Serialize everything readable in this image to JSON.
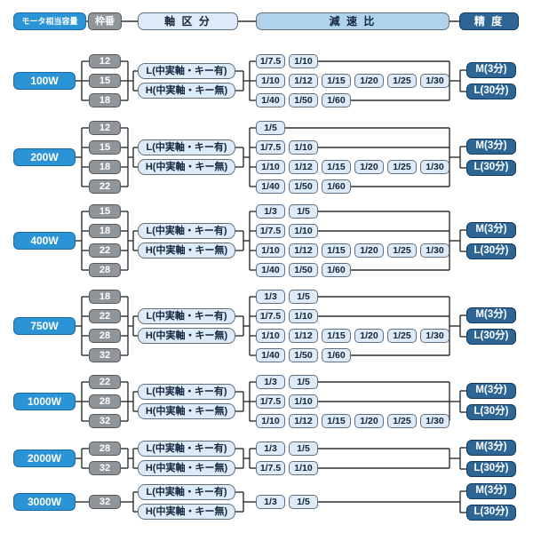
{
  "header": {
    "motor": "モータ相当容量",
    "frame": "枠番",
    "shaft": "軸 区 分",
    "ratio": "減 速 比",
    "precision": "精 度"
  },
  "shaft_options": [
    "L(中実軸・キー有)",
    "H(中実軸・キー無)"
  ],
  "precision_options": [
    "M(3分)",
    "L(30分)"
  ],
  "groups": [
    {
      "power": "100W",
      "frames": [
        "12",
        "15",
        "18"
      ],
      "ratio_rows": [
        [
          "1/7.5",
          "1/10"
        ],
        [
          "1/10",
          "1/12",
          "1/15",
          "1/20",
          "1/25",
          "1/30"
        ],
        [
          "1/40",
          "1/50",
          "1/60"
        ]
      ]
    },
    {
      "power": "200W",
      "frames": [
        "12",
        "15",
        "18",
        "22"
      ],
      "ratio_rows": [
        [
          "1/5"
        ],
        [
          "1/7.5",
          "1/10"
        ],
        [
          "1/10",
          "1/12",
          "1/15",
          "1/20",
          "1/25",
          "1/30"
        ],
        [
          "1/40",
          "1/50",
          "1/60"
        ]
      ]
    },
    {
      "power": "400W",
      "frames": [
        "15",
        "18",
        "22",
        "28"
      ],
      "ratio_rows": [
        [
          "1/3",
          "1/5"
        ],
        [
          "1/7.5",
          "1/10"
        ],
        [
          "1/10",
          "1/12",
          "1/15",
          "1/20",
          "1/25",
          "1/30"
        ],
        [
          "1/40",
          "1/50",
          "1/60"
        ]
      ]
    },
    {
      "power": "750W",
      "frames": [
        "18",
        "22",
        "28",
        "32"
      ],
      "ratio_rows": [
        [
          "1/3",
          "1/5"
        ],
        [
          "1/7.5",
          "1/10"
        ],
        [
          "1/10",
          "1/12",
          "1/15",
          "1/20",
          "1/25",
          "1/30"
        ],
        [
          "1/40",
          "1/50",
          "1/60"
        ]
      ]
    },
    {
      "power": "1000W",
      "frames": [
        "22",
        "28",
        "32"
      ],
      "ratio_rows": [
        [
          "1/3",
          "1/5"
        ],
        [
          "1/7.5",
          "1/10"
        ],
        [
          "1/10",
          "1/12",
          "1/15",
          "1/20",
          "1/25",
          "1/30"
        ]
      ]
    },
    {
      "power": "2000W",
      "frames": [
        "28",
        "32"
      ],
      "ratio_rows": [
        [
          "1/3",
          "1/5"
        ],
        [
          "1/7.5",
          "1/10"
        ]
      ]
    },
    {
      "power": "3000W",
      "frames": [
        "32"
      ],
      "ratio_rows": [
        [
          "1/3",
          "1/5"
        ]
      ]
    }
  ],
  "colors": {
    "motor_blue": "#2b94d6",
    "frame_gray": "#909599",
    "pale_blue": "#dcebf7",
    "header_blue": "#aed3eb",
    "precision_navy": "#2d6694",
    "wire": "#2f2f2f"
  }
}
